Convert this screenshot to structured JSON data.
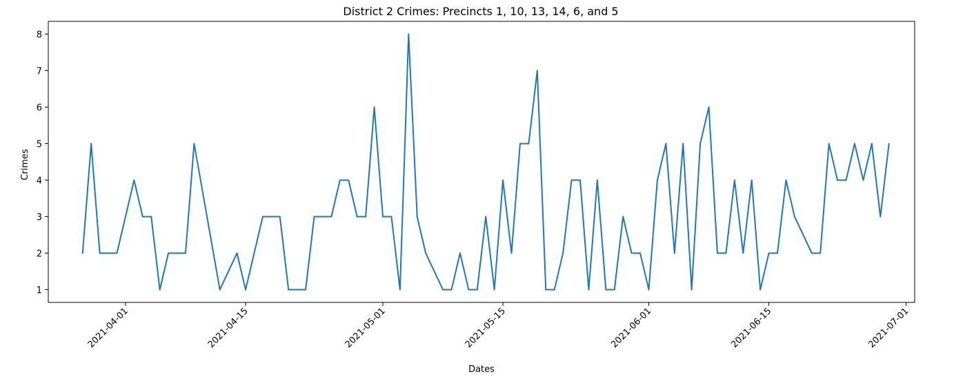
{
  "chart_data": {
    "type": "line",
    "title": "District 2 Crimes: Precincts 1, 10, 13, 14,  6, and 5",
    "xlabel": "Dates",
    "ylabel": "Crimes",
    "x_axis_type": "date",
    "xlim": [
      "2021-03-23",
      "2021-07-02"
    ],
    "ylim": [
      0.65,
      8.35
    ],
    "grid": false,
    "line_color": "#1f77b4",
    "x_ticks": [
      "2021-04-01",
      "2021-04-15",
      "2021-05-01",
      "2021-05-15",
      "2021-06-01",
      "2021-06-15",
      "2021-07-01"
    ],
    "y_ticks": [
      1,
      2,
      3,
      4,
      5,
      6,
      7,
      8
    ],
    "series": [
      {
        "name": "",
        "x": [
          "2021-03-27",
          "2021-03-28",
          "2021-03-29",
          "2021-03-30",
          "2021-03-31",
          "2021-04-02",
          "2021-04-03",
          "2021-04-04",
          "2021-04-05",
          "2021-04-06",
          "2021-04-07",
          "2021-04-08",
          "2021-04-09",
          "2021-04-12",
          "2021-04-14",
          "2021-04-15",
          "2021-04-17",
          "2021-04-19",
          "2021-04-20",
          "2021-04-21",
          "2021-04-22",
          "2021-04-23",
          "2021-04-24",
          "2021-04-25",
          "2021-04-26",
          "2021-04-27",
          "2021-04-28",
          "2021-04-29",
          "2021-04-30",
          "2021-05-01",
          "2021-05-02",
          "2021-05-03",
          "2021-05-04",
          "2021-05-05",
          "2021-05-06",
          "2021-05-08",
          "2021-05-09",
          "2021-05-10",
          "2021-05-11",
          "2021-05-12",
          "2021-05-13",
          "2021-05-14",
          "2021-05-15",
          "2021-05-16",
          "2021-05-17",
          "2021-05-18",
          "2021-05-19",
          "2021-05-20",
          "2021-05-21",
          "2021-05-22",
          "2021-05-23",
          "2021-05-24",
          "2021-05-25",
          "2021-05-26",
          "2021-05-27",
          "2021-05-28",
          "2021-05-29",
          "2021-05-30",
          "2021-05-31",
          "2021-06-01",
          "2021-06-02",
          "2021-06-03",
          "2021-06-04",
          "2021-06-05",
          "2021-06-06",
          "2021-06-07",
          "2021-06-08",
          "2021-06-09",
          "2021-06-10",
          "2021-06-11",
          "2021-06-12",
          "2021-06-13",
          "2021-06-14",
          "2021-06-15",
          "2021-06-16",
          "2021-06-17",
          "2021-06-18",
          "2021-06-20",
          "2021-06-21",
          "2021-06-22",
          "2021-06-23",
          "2021-06-24",
          "2021-06-25",
          "2021-06-26",
          "2021-06-27",
          "2021-06-28",
          "2021-06-29"
        ],
        "y": [
          2,
          5,
          2,
          2,
          2,
          4,
          3,
          3,
          1,
          2,
          2,
          2,
          5,
          1,
          2,
          1,
          3,
          3,
          1,
          1,
          1,
          3,
          3,
          3,
          4,
          4,
          3,
          3,
          6,
          3,
          3,
          1,
          8,
          3,
          2,
          1,
          1,
          2,
          1,
          1,
          3,
          1,
          4,
          2,
          5,
          5,
          7,
          1,
          1,
          2,
          4,
          4,
          1,
          4,
          1,
          1,
          3,
          2,
          2,
          1,
          4,
          5,
          2,
          5,
          1,
          5,
          6,
          2,
          2,
          4,
          2,
          4,
          1,
          2,
          2,
          4,
          3,
          2,
          2,
          5,
          4,
          4,
          5,
          4,
          5,
          3,
          5
        ]
      }
    ]
  }
}
